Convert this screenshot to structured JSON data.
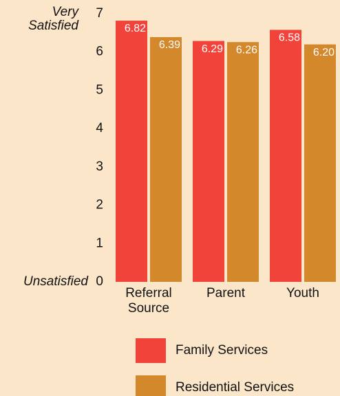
{
  "chart_data": {
    "type": "bar",
    "annotations": [
      "Very Satisfied",
      "Unsatisfied"
    ],
    "categories": [
      "Referral Source",
      "Parent",
      "Youth"
    ],
    "series": [
      {
        "name": "Family Services",
        "color": "#f2433b",
        "values": [
          6.82,
          6.29,
          6.58
        ],
        "value_labels": [
          "6.82",
          "6.29",
          "6.58"
        ]
      },
      {
        "name": "Residential Services",
        "color": "#d4882c",
        "values": [
          6.39,
          6.26,
          6.2
        ],
        "value_labels": [
          "6.39",
          "6.26",
          "6.20"
        ]
      }
    ],
    "ylim": [
      0,
      7
    ],
    "yticks": [
      0,
      1,
      2,
      3,
      4,
      5,
      6,
      7
    ],
    "grid": false
  }
}
